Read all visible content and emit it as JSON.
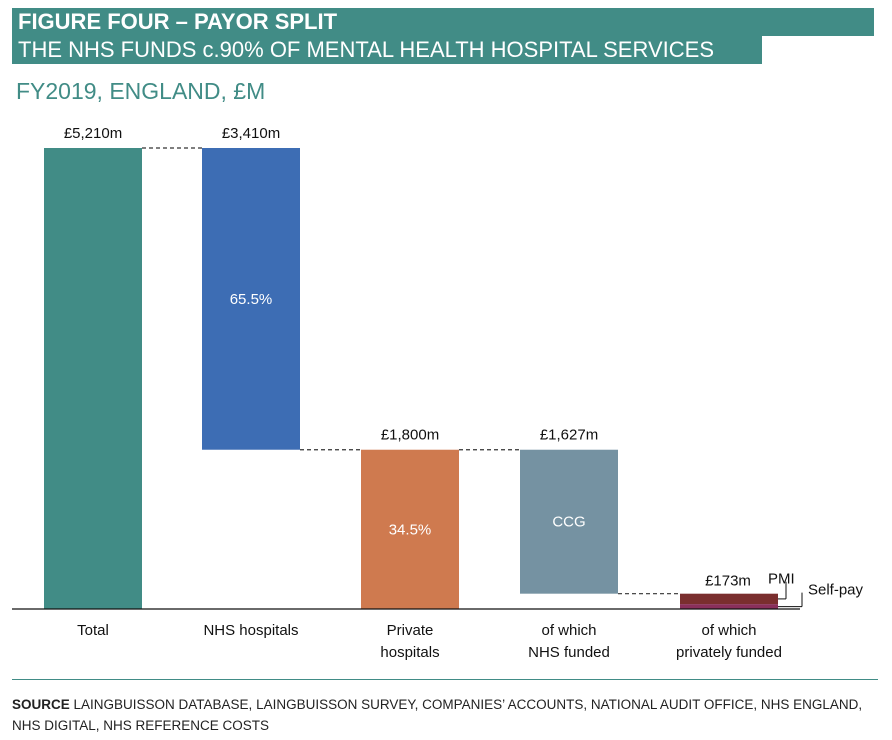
{
  "header": {
    "figure_label": "FIGURE FOUR – PAYOR SPLIT",
    "headline": "THE NHS FUNDS c.90% OF MENTAL HEALTH HOSPITAL SERVICES",
    "subtitle": "FY2019, ENGLAND, £M"
  },
  "colors": {
    "banner": "#418c86",
    "total": "#418c86",
    "nhs_hospitals": "#3d6db4",
    "private_hospitals": "#cf7a4f",
    "nhs_funded": "#7592a2",
    "pmi": "#7a2e2e",
    "self_pay": "#8a2f5b"
  },
  "chart_data": {
    "type": "bar",
    "subtype": "waterfall",
    "units": "£m",
    "ylim": [
      0,
      5210
    ],
    "grid": false,
    "categories": [
      [
        "Total"
      ],
      [
        "NHS hospitals"
      ],
      [
        "Private",
        "hospitals"
      ],
      [
        "of which",
        "NHS funded"
      ],
      [
        "of which",
        "privately funded"
      ]
    ],
    "bars": [
      {
        "name": "Total",
        "base": 0,
        "value": 5210,
        "label": "£5,210m",
        "inner": "",
        "color": "#418c86"
      },
      {
        "name": "NHS hospitals",
        "base": 1800,
        "value": 3410,
        "label": "£3,410m",
        "inner": "65.5%",
        "color": "#3d6db4"
      },
      {
        "name": "Private hospitals",
        "base": 0,
        "value": 1800,
        "label": "£1,800m",
        "inner": "34.5%",
        "color": "#cf7a4f"
      },
      {
        "name": "NHS funded",
        "base": 173,
        "value": 1627,
        "label": "£1,627m",
        "inner": "CCG",
        "color": "#7592a2"
      }
    ],
    "private_split": {
      "total_label": "£173m",
      "segments": [
        {
          "name": "PMI",
          "label": "PMI",
          "value": 118,
          "color": "#7a2e2e"
        },
        {
          "name": "Self-pay",
          "label": "Self-pay",
          "value": 55,
          "color": "#8a2f5b"
        }
      ]
    }
  },
  "source": {
    "label": "SOURCE",
    "text": " LAINGBUISSON DATABASE, LAINGBUISSON SURVEY, COMPANIES’ ACCOUNTS, NATIONAL AUDIT OFFICE, NHS ENGLAND, NHS DIGITAL, NHS REFERENCE COSTS"
  }
}
